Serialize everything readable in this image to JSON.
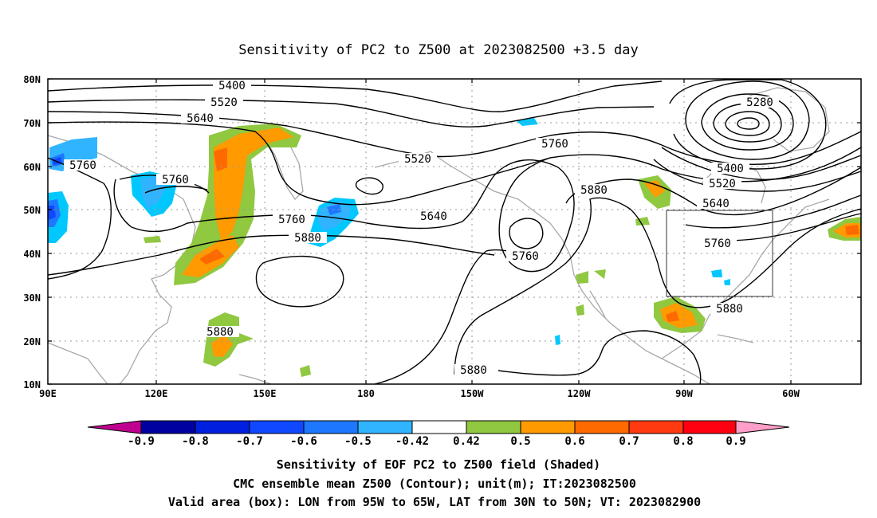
{
  "title": "Sensitivity of PC2 to Z500 at 2023082500 +3.5 day",
  "lat_labels": [
    "80N",
    "70N",
    "60N",
    "50N",
    "40N",
    "30N",
    "20N",
    "10N"
  ],
  "lon_labels": [
    "90E",
    "120E",
    "150E",
    "180",
    "150W",
    "120W",
    "90W",
    "60W"
  ],
  "contour_labels": [
    {
      "id": "c5400a",
      "text": "5400"
    },
    {
      "id": "c5520a",
      "text": "5520"
    },
    {
      "id": "c5640a",
      "text": "5640"
    },
    {
      "id": "c5760a",
      "text": "5760"
    },
    {
      "id": "c5760b",
      "text": "5760"
    },
    {
      "id": "c5760c",
      "text": "5760"
    },
    {
      "id": "c5880a",
      "text": "5880"
    },
    {
      "id": "c5520b",
      "text": "5520"
    },
    {
      "id": "c5640b",
      "text": "5640"
    },
    {
      "id": "c5760d",
      "text": "5760"
    },
    {
      "id": "c5760e",
      "text": "5760"
    },
    {
      "id": "c5880b",
      "text": "5880"
    },
    {
      "id": "c5280",
      "text": "5280"
    },
    {
      "id": "c5400b",
      "text": "5400"
    },
    {
      "id": "c5520c",
      "text": "5520"
    },
    {
      "id": "c5640c",
      "text": "5640"
    },
    {
      "id": "c5760f",
      "text": "5760"
    },
    {
      "id": "c5880c",
      "text": "5880"
    },
    {
      "id": "c5880d",
      "text": "5880"
    },
    {
      "id": "c5880e",
      "text": "5880"
    }
  ],
  "colorbar": {
    "labels": [
      "-0.9",
      "-0.8",
      "-0.7",
      "-0.6",
      "-0.5",
      "-0.42",
      "0.42",
      "0.5",
      "0.6",
      "0.7",
      "0.8",
      "0.9"
    ],
    "colors": [
      "#0000a0",
      "#0020e0",
      "#1048ff",
      "#1e78ff",
      "#30b4ff",
      "#00c8ff",
      "#ffffff",
      "#90c840",
      "#ff9a00",
      "#ff6a00",
      "#ff3a10",
      "#ff0010"
    ],
    "low_end_color": "#c00090",
    "high_end_color": "#ff9ec8"
  },
  "footer": {
    "line1": "Sensitivity of EOF PC2 to Z500 field (Shaded)",
    "line2": "CMC ensemble mean Z500 (Contour); unit(m); IT:2023082500",
    "line3": "Valid area (box): LON from 95W to 65W, LAT from 30N to 50N; VT: 2023082900"
  }
}
